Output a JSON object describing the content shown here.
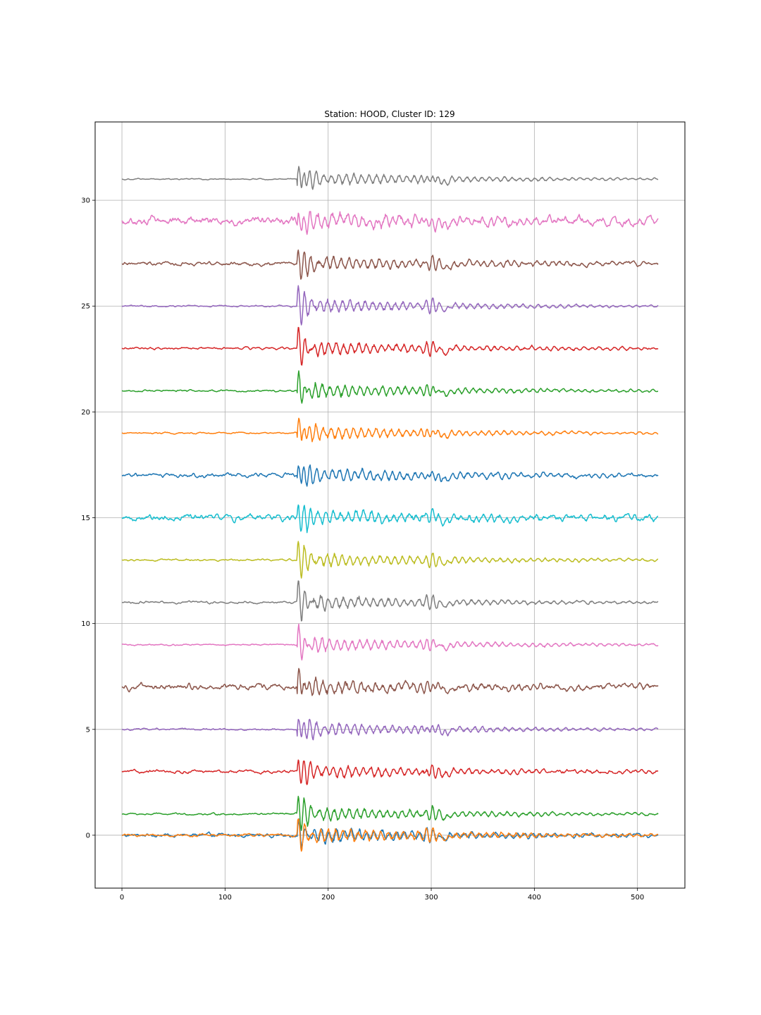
{
  "chart_data": {
    "type": "line",
    "title": "Station: HOOD, Cluster ID: 129",
    "xlabel": "",
    "ylabel": "",
    "xlim": [
      -26,
      546
    ],
    "ylim": [
      -2.5,
      33.7
    ],
    "xticks": [
      0,
      100,
      200,
      300,
      400,
      500
    ],
    "yticks": [
      0,
      5,
      10,
      15,
      20,
      25,
      30
    ],
    "grid": true,
    "legend": "none",
    "x_range": [
      0,
      520
    ],
    "event_onset_x": 170,
    "series": [
      {
        "offset": 0,
        "color": "#1f77b4",
        "noise": 0.09,
        "amp": 0.75
      },
      {
        "offset": 0,
        "color": "#ff7f0e",
        "noise": 0.07,
        "amp": 0.75
      },
      {
        "offset": 1,
        "color": "#2ca02c",
        "noise": 0.05,
        "amp": 1.0
      },
      {
        "offset": 3,
        "color": "#d62728",
        "noise": 0.08,
        "amp": 1.0
      },
      {
        "offset": 5,
        "color": "#9467bd",
        "noise": 0.05,
        "amp": 1.0
      },
      {
        "offset": 7,
        "color": "#8c564b",
        "noise": 0.15,
        "amp": 1.0
      },
      {
        "offset": 9,
        "color": "#e377c2",
        "noise": 0.04,
        "amp": 1.0
      },
      {
        "offset": 11,
        "color": "#7f7f7f",
        "noise": 0.06,
        "amp": 1.0
      },
      {
        "offset": 13,
        "color": "#bcbd22",
        "noise": 0.05,
        "amp": 1.0
      },
      {
        "offset": 15,
        "color": "#17becf",
        "noise": 0.15,
        "amp": 1.0
      },
      {
        "offset": 17,
        "color": "#1f77b4",
        "noise": 0.1,
        "amp": 1.0
      },
      {
        "offset": 19,
        "color": "#ff7f0e",
        "noise": 0.04,
        "amp": 1.0
      },
      {
        "offset": 21,
        "color": "#2ca02c",
        "noise": 0.05,
        "amp": 1.0
      },
      {
        "offset": 23,
        "color": "#d62728",
        "noise": 0.06,
        "amp": 1.0
      },
      {
        "offset": 25,
        "color": "#9467bd",
        "noise": 0.04,
        "amp": 1.0
      },
      {
        "offset": 27,
        "color": "#8c564b",
        "noise": 0.1,
        "amp": 1.0
      },
      {
        "offset": 29,
        "color": "#e377c2",
        "noise": 0.22,
        "amp": 1.0
      },
      {
        "offset": 31,
        "color": "#7f7f7f",
        "noise": 0.03,
        "amp": 1.0
      }
    ]
  }
}
